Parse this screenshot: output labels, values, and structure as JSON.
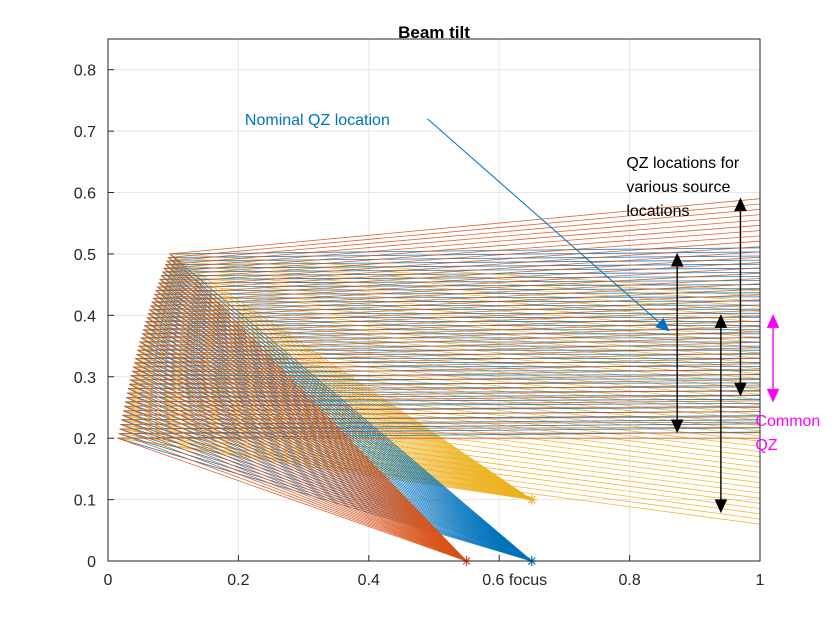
{
  "chart_data": {
    "type": "line",
    "title": "Beam tilt",
    "xlabel": "",
    "ylabel": "",
    "xlim": [
      0,
      1
    ],
    "ylim": [
      0,
      0.85
    ],
    "xticks": [
      0,
      0.2,
      0.4,
      0.6,
      0.8,
      1
    ],
    "yticks": [
      0,
      0.1,
      0.2,
      0.3,
      0.4,
      0.5,
      0.6,
      0.7,
      0.8
    ],
    "xtick_labels": [
      "0",
      "0.2",
      "0.4",
      "0.6 focus",
      "0.8",
      "1"
    ],
    "ytick_labels": [
      "0",
      "0.1",
      "0.2",
      "0.3",
      "0.4",
      "0.5",
      "0.6",
      "0.7",
      "0.8"
    ],
    "grid": true,
    "colors": {
      "blue": "#0072BD",
      "orange": "#D95319",
      "yellow": "#EDB120",
      "annotation_blue": "#0072BD",
      "annotation_black": "#000000",
      "annotation_magenta": "#FF00FF"
    },
    "reflector": {
      "description_points": [
        [
          0.015,
          0.2
        ],
        [
          0.03,
          0.27
        ],
        [
          0.05,
          0.36
        ],
        [
          0.07,
          0.43
        ],
        [
          0.095,
          0.5
        ]
      ]
    },
    "series": [
      {
        "color_key": "blue",
        "source": [
          0.65,
          0.0
        ],
        "exit_y": [
          0.21,
          0.51
        ]
      },
      {
        "color_key": "orange",
        "source": [
          0.55,
          0.0
        ],
        "exit_y": [
          0.2,
          0.59
        ]
      },
      {
        "color_key": "yellow",
        "source": [
          0.65,
          0.1
        ],
        "exit_y": [
          0.06,
          0.44
        ]
      }
    ],
    "annotations": [
      {
        "text": "Nominal QZ location",
        "color_key": "annotation_blue",
        "text_at": [
          0.21,
          0.72
        ],
        "arrow_from": [
          0.49,
          0.72
        ],
        "arrow_to": [
          0.86,
          0.375
        ]
      },
      {
        "text_lines": [
          "QZ locations for",
          "various source",
          "locations"
        ],
        "color_key": "annotation_black",
        "text_at": [
          0.795,
          0.65
        ]
      },
      {
        "text_lines": [
          "Common",
          "QZ"
        ],
        "color_key": "annotation_magenta",
        "text_at": [
          0.993,
          0.23
        ]
      }
    ],
    "range_arrows": [
      {
        "color_key": "annotation_black",
        "x": 0.873,
        "y": [
          0.21,
          0.5
        ]
      },
      {
        "color_key": "annotation_black",
        "x": 0.97,
        "y": [
          0.27,
          0.59
        ]
      },
      {
        "color_key": "annotation_black",
        "x": 0.94,
        "y": [
          0.08,
          0.4
        ]
      },
      {
        "color_key": "annotation_magenta",
        "x": 1.02,
        "y": [
          0.26,
          0.4
        ]
      }
    ]
  }
}
